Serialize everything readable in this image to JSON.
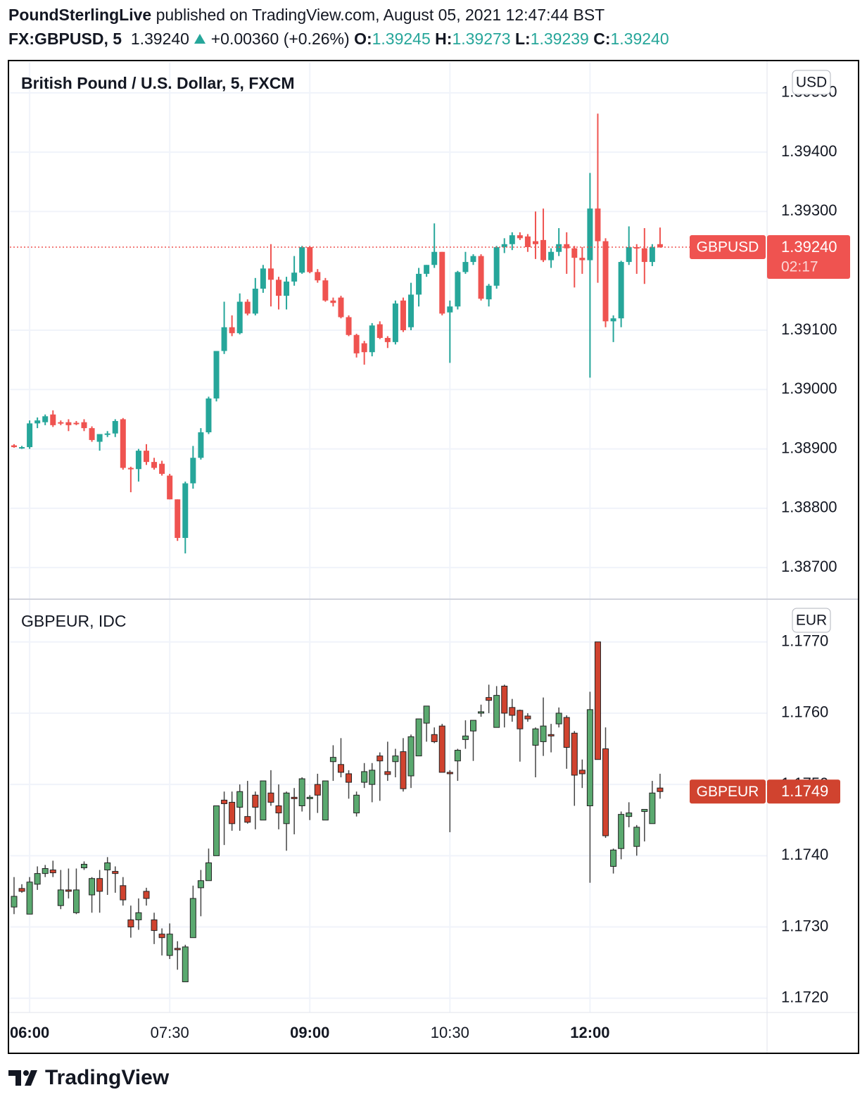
{
  "header": {
    "publisher": "PoundSterlingLive",
    "published": "published on TradingView.com, August 05, 2021 12:47:44 BST",
    "symbol": "FX:GBPUSD, 5",
    "price": "1.39240",
    "change": "+0.00360 (+0.26%)",
    "o_label": "O:",
    "o": "1.39245",
    "h_label": "H:",
    "h": "1.39273",
    "l_label": "L:",
    "l": "1.39239",
    "c_label": "C:",
    "c": "1.39240"
  },
  "footer": {
    "brand": "TradingView"
  },
  "chart_data": [
    {
      "type": "candlestick",
      "title": "British Pound / U.S. Dollar, 5, FXCM",
      "currency": "USD",
      "up_color": "#26a69a",
      "down_color": "#ef5350",
      "outline": false,
      "last_name": "GBPUSD",
      "last_price": 1.3924,
      "last_label": "1.39240",
      "countdown": "02:17",
      "last_line": true,
      "ylim": [
        1.38648,
        1.39552
      ],
      "yticks": [
        {
          "value": 1.387,
          "label": "1.38700"
        },
        {
          "value": 1.388,
          "label": "1.38800"
        },
        {
          "value": 1.389,
          "label": "1.38900"
        },
        {
          "value": 1.39,
          "label": "1.39000"
        },
        {
          "value": 1.391,
          "label": "1.39100"
        },
        {
          "value": 1.393,
          "label": "1.39300"
        },
        {
          "value": 1.394,
          "label": "1.39400"
        },
        {
          "value": 1.395,
          "label": "1.39500"
        }
      ],
      "ohlc": [
        [
          1.38906,
          1.38908,
          1.38902,
          1.38903
        ],
        [
          1.38902,
          1.38905,
          1.389,
          1.38903
        ],
        [
          1.38903,
          1.38948,
          1.389,
          1.38943
        ],
        [
          1.38943,
          1.38953,
          1.38935,
          1.38948
        ],
        [
          1.38945,
          1.38958,
          1.3894,
          1.38955
        ],
        [
          1.38958,
          1.38965,
          1.38937,
          1.3894
        ],
        [
          1.38945,
          1.38948,
          1.3894,
          1.38944
        ],
        [
          1.38945,
          1.3895,
          1.3893,
          1.3894
        ],
        [
          1.38944,
          1.38947,
          1.3894,
          1.38942
        ],
        [
          1.38945,
          1.3895,
          1.3893,
          1.38935
        ],
        [
          1.38935,
          1.38938,
          1.38912,
          1.38915
        ],
        [
          1.38912,
          1.38925,
          1.38897,
          1.38925
        ],
        [
          1.38925,
          1.3893,
          1.3892,
          1.38926
        ],
        [
          1.38926,
          1.3895,
          1.3892,
          1.38947
        ],
        [
          1.3895,
          1.38952,
          1.38865,
          1.38868
        ],
        [
          1.38868,
          1.3887,
          1.38827,
          1.38866
        ],
        [
          1.38866,
          1.389,
          1.38845,
          1.38897
        ],
        [
          1.38897,
          1.38908,
          1.38873,
          1.38878
        ],
        [
          1.38878,
          1.38885,
          1.38865,
          1.38868
        ],
        [
          1.38875,
          1.3888,
          1.38855,
          1.38858
        ],
        [
          1.38855,
          1.38858,
          1.38815,
          1.38815
        ],
        [
          1.38815,
          1.38815,
          1.38745,
          1.3875
        ],
        [
          1.3875,
          1.38845,
          1.38724,
          1.38842
        ],
        [
          1.38842,
          1.38905,
          1.38833,
          1.38885
        ],
        [
          1.38885,
          1.38935,
          1.38882,
          1.38928
        ],
        [
          1.38928,
          1.38988,
          1.38925,
          1.38985
        ],
        [
          1.38985,
          1.39065,
          1.3898,
          1.39065
        ],
        [
          1.39065,
          1.39148,
          1.3906,
          1.39105
        ],
        [
          1.39105,
          1.39125,
          1.3909,
          1.39095
        ],
        [
          1.39095,
          1.39162,
          1.39093,
          1.39148
        ],
        [
          1.39148,
          1.39152,
          1.39125,
          1.39128
        ],
        [
          1.39128,
          1.39188,
          1.39125,
          1.3917
        ],
        [
          1.3917,
          1.3921,
          1.39163,
          1.39204
        ],
        [
          1.39204,
          1.39245,
          1.3914,
          1.39185
        ],
        [
          1.39185,
          1.3919,
          1.39135,
          1.39158
        ],
        [
          1.39158,
          1.3919,
          1.39135,
          1.39182
        ],
        [
          1.39182,
          1.39225,
          1.39175,
          1.39197
        ],
        [
          1.39197,
          1.39242,
          1.39195,
          1.3924
        ],
        [
          1.3924,
          1.39242,
          1.39196,
          1.39198
        ],
        [
          1.39198,
          1.39203,
          1.3918,
          1.39184
        ],
        [
          1.39184,
          1.39188,
          1.39148,
          1.3915
        ],
        [
          1.3915,
          1.39155,
          1.3914,
          1.39146
        ],
        [
          1.39155,
          1.39158,
          1.3912,
          1.39122
        ],
        [
          1.39122,
          1.39125,
          1.3909,
          1.39092
        ],
        [
          1.39092,
          1.39094,
          1.39054,
          1.39061
        ],
        [
          1.39078,
          1.39082,
          1.39042,
          1.39063
        ],
        [
          1.39063,
          1.39112,
          1.39056,
          1.39108
        ],
        [
          1.3911,
          1.39115,
          1.39085,
          1.39087
        ],
        [
          1.39087,
          1.3909,
          1.3907,
          1.3908
        ],
        [
          1.3908,
          1.3915,
          1.39076,
          1.39145
        ],
        [
          1.3915,
          1.39155,
          1.39097,
          1.391
        ],
        [
          1.39105,
          1.3918,
          1.391,
          1.3916
        ],
        [
          1.3916,
          1.39205,
          1.3914,
          1.39195
        ],
        [
          1.39195,
          1.3921,
          1.3919,
          1.3921
        ],
        [
          1.3921,
          1.3928,
          1.39205,
          1.39232
        ],
        [
          1.39232,
          1.39232,
          1.39125,
          1.39128
        ],
        [
          1.3913,
          1.3915,
          1.39045,
          1.3914
        ],
        [
          1.3914,
          1.392,
          1.39135,
          1.39198
        ],
        [
          1.39198,
          1.39232,
          1.39195,
          1.39215
        ],
        [
          1.39215,
          1.39228,
          1.3921,
          1.39225
        ],
        [
          1.39225,
          1.39228,
          1.3915,
          1.39153
        ],
        [
          1.39152,
          1.39178,
          1.3914,
          1.39175
        ],
        [
          1.39175,
          1.39242,
          1.3917,
          1.3924
        ],
        [
          1.3924,
          1.39255,
          1.3923,
          1.39245
        ],
        [
          1.39245,
          1.39265,
          1.39235,
          1.3926
        ],
        [
          1.3926,
          1.39265,
          1.39252,
          1.39255
        ],
        [
          1.39258,
          1.39262,
          1.39232,
          1.3924
        ],
        [
          1.3925,
          1.393,
          1.3922,
          1.39245
        ],
        [
          1.39252,
          1.39305,
          1.39215,
          1.39218
        ],
        [
          1.39218,
          1.39238,
          1.39205,
          1.39232
        ],
        [
          1.39232,
          1.39272,
          1.39225,
          1.39245
        ],
        [
          1.39245,
          1.39265,
          1.39195,
          1.39238
        ],
        [
          1.39238,
          1.39242,
          1.39172,
          1.39222
        ],
        [
          1.39222,
          1.3924,
          1.39195,
          1.39218
        ],
        [
          1.39218,
          1.39365,
          1.3902,
          1.39305
        ],
        [
          1.39305,
          1.39465,
          1.3918,
          1.3925
        ],
        [
          1.3925,
          1.39255,
          1.39105,
          1.39115
        ],
        [
          1.39115,
          1.39125,
          1.3908,
          1.3912
        ],
        [
          1.3912,
          1.39217,
          1.39105,
          1.39215
        ],
        [
          1.39215,
          1.39275,
          1.3921,
          1.3924
        ],
        [
          1.3924,
          1.39245,
          1.39195,
          1.39238
        ],
        [
          1.39238,
          1.39272,
          1.39178,
          1.39215
        ],
        [
          1.39215,
          1.39245,
          1.39208,
          1.3924
        ],
        [
          1.39245,
          1.39273,
          1.39239,
          1.3924
        ]
      ]
    },
    {
      "type": "candlestick",
      "title": "GBPEUR, IDC",
      "currency": "EUR",
      "up_color": "#5aa96f",
      "down_color": "#d0432f",
      "outline": true,
      "last_name": "GBPEUR",
      "last_price": 1.1749,
      "last_line": false,
      "ylim": [
        1.1718,
        1.17759
      ],
      "yticks": [
        {
          "value": 1.172,
          "label": "1.1720"
        },
        {
          "value": 1.173,
          "label": "1.1730"
        },
        {
          "value": 1.174,
          "label": "1.1740"
        },
        {
          "value": 1.175,
          "label": "1.1750"
        },
        {
          "value": 1.176,
          "label": "1.1760"
        },
        {
          "value": 1.177,
          "label": "1.1770"
        }
      ],
      "xlim": [
        -0.54,
        96.75
      ],
      "xticks": [
        {
          "value": 2,
          "label": "06:00"
        },
        {
          "value": 20,
          "label": "07:30"
        },
        {
          "value": 38,
          "label": "09:00"
        },
        {
          "value": 56,
          "label": "10:30"
        },
        {
          "value": 74,
          "label": "12:00"
        }
      ],
      "ohlc": [
        [
          1.17328,
          1.1737,
          1.17318,
          1.17343
        ],
        [
          1.17354,
          1.1736,
          1.17348,
          1.1735
        ],
        [
          1.17318,
          1.1737,
          1.17318,
          1.17363
        ],
        [
          1.1736,
          1.17385,
          1.17352,
          1.17375
        ],
        [
          1.17375,
          1.17387,
          1.1737,
          1.17382
        ],
        [
          1.1738,
          1.17393,
          1.1737,
          1.17376
        ],
        [
          1.1733,
          1.1738,
          1.17325,
          1.17352
        ],
        [
          1.17352,
          1.17382,
          1.1734,
          1.1735
        ],
        [
          1.1732,
          1.17382,
          1.17318,
          1.17352
        ],
        [
          1.17383,
          1.17392,
          1.1738,
          1.17388
        ],
        [
          1.17345,
          1.1737,
          1.1732,
          1.17368
        ],
        [
          1.17368,
          1.1738,
          1.1732,
          1.1735
        ],
        [
          1.1738,
          1.17398,
          1.17345,
          1.1739
        ],
        [
          1.17378,
          1.17385,
          1.17348,
          1.17375
        ],
        [
          1.17358,
          1.1737,
          1.1733,
          1.17338
        ],
        [
          1.1731,
          1.1733,
          1.17285,
          1.173
        ],
        [
          1.1731,
          1.1734,
          1.17296,
          1.1732
        ],
        [
          1.1735,
          1.17355,
          1.1733,
          1.1734
        ],
        [
          1.1731,
          1.1732,
          1.17276,
          1.17295
        ],
        [
          1.1729,
          1.17298,
          1.1726,
          1.17285
        ],
        [
          1.1726,
          1.17305,
          1.17255,
          1.1729
        ],
        [
          1.1727,
          1.1728,
          1.1724,
          1.17268
        ],
        [
          1.17223,
          1.17275,
          1.17223,
          1.17272
        ],
        [
          1.17285,
          1.17358,
          1.17285,
          1.1734
        ],
        [
          1.17355,
          1.1738,
          1.17315,
          1.17365
        ],
        [
          1.17365,
          1.1741,
          1.17365,
          1.1739
        ],
        [
          1.174,
          1.1747,
          1.174,
          1.1747
        ],
        [
          1.17478,
          1.1749,
          1.17415,
          1.17473
        ],
        [
          1.17475,
          1.1749,
          1.17435,
          1.17445
        ],
        [
          1.17468,
          1.175,
          1.17435,
          1.1749
        ],
        [
          1.17455,
          1.17505,
          1.17445,
          1.17447
        ],
        [
          1.17485,
          1.1749,
          1.17437,
          1.17468
        ],
        [
          1.1745,
          1.17505,
          1.1745,
          1.17505
        ],
        [
          1.17488,
          1.1752,
          1.1747,
          1.17475
        ],
        [
          1.1747,
          1.175,
          1.17437,
          1.1746
        ],
        [
          1.17445,
          1.1749,
          1.17407,
          1.17488
        ],
        [
          1.17482,
          1.17495,
          1.1743,
          1.1748
        ],
        [
          1.1747,
          1.1751,
          1.17462,
          1.17508
        ],
        [
          1.1748,
          1.17485,
          1.1745,
          1.17482
        ],
        [
          1.175,
          1.17515,
          1.1746,
          1.17485
        ],
        [
          1.1745,
          1.17505,
          1.1745,
          1.17505
        ],
        [
          1.17532,
          1.17555,
          1.17505,
          1.17538
        ],
        [
          1.17528,
          1.17565,
          1.1751,
          1.17517
        ],
        [
          1.17515,
          1.1752,
          1.1748,
          1.17503
        ],
        [
          1.1746,
          1.1749,
          1.17455,
          1.17485
        ],
        [
          1.17503,
          1.1753,
          1.17495,
          1.17518
        ],
        [
          1.175,
          1.1753,
          1.17475,
          1.1752
        ],
        [
          1.1754,
          1.17545,
          1.17477,
          1.17533
        ],
        [
          1.17518,
          1.1756,
          1.17505,
          1.17514
        ],
        [
          1.17532,
          1.1755,
          1.1751,
          1.1754
        ],
        [
          1.17546,
          1.17565,
          1.1749,
          1.17494
        ],
        [
          1.17512,
          1.1757,
          1.17495,
          1.17567
        ],
        [
          1.1754,
          1.17592,
          1.1754,
          1.17592
        ],
        [
          1.17586,
          1.1761,
          1.1756,
          1.1761
        ],
        [
          1.1757,
          1.1758,
          1.17558,
          1.1756
        ],
        [
          1.17582,
          1.17585,
          1.17517,
          1.17517
        ],
        [
          1.17517,
          1.1752,
          1.17433,
          1.17515
        ],
        [
          1.17533,
          1.1755,
          1.17505,
          1.17548
        ],
        [
          1.17563,
          1.1759,
          1.1755,
          1.17568
        ],
        [
          1.17575,
          1.1759,
          1.17533,
          1.1759
        ],
        [
          1.176,
          1.17612,
          1.17595,
          1.17602
        ],
        [
          1.17622,
          1.1764,
          1.176,
          1.17618
        ],
        [
          1.1758,
          1.17638,
          1.1758,
          1.17625
        ],
        [
          1.17638,
          1.1764,
          1.1758,
          1.176
        ],
        [
          1.17608,
          1.1762,
          1.17588,
          1.17597
        ],
        [
          1.17604,
          1.17605,
          1.17532,
          1.17578
        ],
        [
          1.17596,
          1.176,
          1.17588,
          1.17592
        ],
        [
          1.17555,
          1.1758,
          1.1751,
          1.17578
        ],
        [
          1.1756,
          1.17622,
          1.1754,
          1.17582
        ],
        [
          1.1757,
          1.17585,
          1.17545,
          1.17568
        ],
        [
          1.17585,
          1.17608,
          1.1758,
          1.176
        ],
        [
          1.17594,
          1.17597,
          1.17522,
          1.17552
        ],
        [
          1.17572,
          1.17575,
          1.1747,
          1.17513
        ],
        [
          1.1752,
          1.17535,
          1.17495,
          1.17515
        ],
        [
          1.1747,
          1.1763,
          1.17362,
          1.17605
        ],
        [
          1.177,
          1.177,
          1.17535,
          1.17535
        ],
        [
          1.1755,
          1.1758,
          1.17425,
          1.17428
        ],
        [
          1.17385,
          1.1741,
          1.17375,
          1.17408
        ],
        [
          1.1741,
          1.17462,
          1.17395,
          1.17458
        ],
        [
          1.17455,
          1.17475,
          1.1744,
          1.1746
        ],
        [
          1.17413,
          1.17443,
          1.174,
          1.1744
        ],
        [
          1.17462,
          1.17465,
          1.1742,
          1.17465
        ],
        [
          1.17445,
          1.17505,
          1.17445,
          1.17488
        ],
        [
          1.17495,
          1.17515,
          1.1748,
          1.1749
        ]
      ]
    }
  ]
}
